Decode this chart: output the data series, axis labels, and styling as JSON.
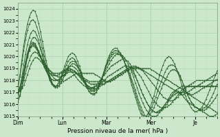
{
  "xlabel": "Pression niveau de la mer( hPa )",
  "bg_color": "#cce8cc",
  "grid_color_major": "#aad4aa",
  "grid_color_minor": "#c0e0c0",
  "line_color": "#2d5e2d",
  "ylim": [
    1015,
    1024.5
  ],
  "yticks": [
    1015,
    1016,
    1017,
    1018,
    1019,
    1020,
    1021,
    1022,
    1023,
    1024
  ],
  "xlim": [
    0,
    108
  ],
  "xtick_positions": [
    0,
    24,
    48,
    72,
    96
  ],
  "day_labels": [
    "Dim",
    "Lun",
    "Mar",
    "Mer",
    "Je"
  ],
  "series": [
    [
      1017.0,
      1017.1,
      1017.3,
      1017.6,
      1018.0,
      1018.5,
      1019.0,
      1019.4,
      1019.7,
      1019.9,
      1019.9,
      1019.8,
      1019.6,
      1019.4,
      1019.2,
      1019.0,
      1018.8,
      1018.6,
      1018.4,
      1018.2,
      1018.1,
      1018.0,
      1017.9,
      1017.9,
      1017.9,
      1018.0,
      1018.1,
      1018.2,
      1018.3,
      1018.4,
      1018.5,
      1018.6,
      1018.6,
      1018.6,
      1018.6,
      1018.6,
      1018.6,
      1018.6,
      1018.6,
      1018.6,
      1018.6,
      1018.5,
      1018.4,
      1018.3,
      1018.2,
      1018.1,
      1018.0,
      1017.9,
      1017.9,
      1017.9,
      1018.0,
      1018.1,
      1018.2,
      1018.3,
      1018.4,
      1018.5,
      1018.6,
      1018.7,
      1018.8,
      1018.9,
      1019.0,
      1019.0,
      1019.0,
      1019.0,
      1019.0,
      1019.0,
      1019.0,
      1019.0,
      1019.0,
      1019.0,
      1019.0,
      1018.9,
      1018.8,
      1018.7,
      1018.6,
      1018.5,
      1018.4,
      1018.3,
      1018.2,
      1018.1,
      1018.0,
      1017.9,
      1017.8,
      1017.7,
      1017.6,
      1017.5,
      1017.4,
      1017.3,
      1017.2,
      1017.1,
      1017.0,
      1016.9,
      1016.8,
      1016.8,
      1016.9,
      1017.0,
      1017.1,
      1017.2,
      1017.3,
      1017.4,
      1017.5,
      1017.6,
      1017.7,
      1017.8,
      1017.9,
      1018.0,
      1018.1
    ],
    [
      1017.0,
      1017.2,
      1017.5,
      1018.0,
      1018.6,
      1019.2,
      1019.7,
      1020.1,
      1020.3,
      1020.4,
      1020.3,
      1020.1,
      1019.9,
      1019.7,
      1019.4,
      1019.2,
      1019.0,
      1018.8,
      1018.6,
      1018.5,
      1018.4,
      1018.3,
      1018.3,
      1018.3,
      1018.4,
      1018.5,
      1018.6,
      1018.7,
      1018.7,
      1018.7,
      1018.7,
      1018.6,
      1018.5,
      1018.4,
      1018.3,
      1018.2,
      1018.1,
      1018.0,
      1017.9,
      1017.9,
      1017.9,
      1017.9,
      1017.9,
      1017.9,
      1017.9,
      1017.9,
      1017.9,
      1017.9,
      1017.9,
      1017.9,
      1018.0,
      1018.1,
      1018.2,
      1018.3,
      1018.4,
      1018.5,
      1018.6,
      1018.7,
      1018.8,
      1018.9,
      1019.0,
      1019.1,
      1019.1,
      1019.1,
      1019.1,
      1019.0,
      1018.9,
      1018.8,
      1018.7,
      1018.6,
      1018.5,
      1018.4,
      1018.3,
      1018.2,
      1018.1,
      1018.0,
      1017.9,
      1017.8,
      1017.7,
      1017.6,
      1017.5,
      1017.4,
      1017.3,
      1017.2,
      1017.1,
      1017.0,
      1016.9,
      1016.8,
      1016.8,
      1016.9,
      1017.0,
      1017.1,
      1017.2,
      1017.3,
      1017.4,
      1017.5,
      1017.6,
      1017.7,
      1017.8,
      1017.9,
      1018.0,
      1018.1,
      1018.2,
      1018.3,
      1018.4,
      1018.5,
      1018.6
    ],
    [
      1017.2,
      1017.5,
      1018.0,
      1018.7,
      1019.4,
      1020.0,
      1020.5,
      1020.8,
      1020.9,
      1020.8,
      1020.6,
      1020.3,
      1020.0,
      1019.7,
      1019.4,
      1019.2,
      1019.0,
      1018.8,
      1018.7,
      1018.6,
      1018.6,
      1018.6,
      1018.6,
      1018.7,
      1018.8,
      1018.9,
      1019.0,
      1019.0,
      1019.0,
      1018.9,
      1018.8,
      1018.6,
      1018.5,
      1018.3,
      1018.2,
      1018.1,
      1018.0,
      1017.9,
      1017.8,
      1017.7,
      1017.7,
      1017.7,
      1017.7,
      1017.7,
      1017.7,
      1017.7,
      1017.7,
      1017.8,
      1017.9,
      1018.0,
      1018.1,
      1018.2,
      1018.3,
      1018.4,
      1018.5,
      1018.6,
      1018.7,
      1018.8,
      1018.9,
      1019.0,
      1019.1,
      1019.2,
      1019.2,
      1019.2,
      1019.1,
      1019.0,
      1018.9,
      1018.8,
      1018.6,
      1018.4,
      1018.2,
      1018.0,
      1017.8,
      1017.6,
      1017.4,
      1017.2,
      1017.0,
      1016.8,
      1016.6,
      1016.5,
      1016.4,
      1016.3,
      1016.3,
      1016.3,
      1016.4,
      1016.5,
      1016.6,
      1016.8,
      1017.0,
      1017.2,
      1017.4,
      1017.5,
      1017.6,
      1017.7,
      1017.8,
      1017.9,
      1018.0,
      1018.0,
      1018.0,
      1018.0,
      1018.0,
      1018.0,
      1018.0,
      1018.0,
      1018.0,
      1018.0,
      1018.0,
      1018.0
    ],
    [
      1017.0,
      1017.4,
      1018.0,
      1018.8,
      1019.6,
      1020.3,
      1020.8,
      1021.1,
      1021.2,
      1021.1,
      1020.8,
      1020.5,
      1020.1,
      1019.7,
      1019.4,
      1019.1,
      1018.8,
      1018.6,
      1018.5,
      1018.4,
      1018.4,
      1018.4,
      1018.5,
      1018.6,
      1018.7,
      1018.8,
      1018.9,
      1018.9,
      1018.8,
      1018.7,
      1018.5,
      1018.3,
      1018.1,
      1017.9,
      1017.8,
      1017.6,
      1017.5,
      1017.4,
      1017.3,
      1017.3,
      1017.3,
      1017.3,
      1017.3,
      1017.4,
      1017.5,
      1017.6,
      1017.7,
      1017.8,
      1017.9,
      1018.0,
      1018.1,
      1018.2,
      1018.3,
      1018.4,
      1018.5,
      1018.6,
      1018.7,
      1018.8,
      1018.9,
      1019.0,
      1019.1,
      1019.1,
      1019.0,
      1018.9,
      1018.7,
      1018.5,
      1018.3,
      1018.0,
      1017.7,
      1017.4,
      1017.1,
      1016.8,
      1016.5,
      1016.3,
      1016.1,
      1015.9,
      1015.8,
      1015.7,
      1015.7,
      1015.7,
      1015.8,
      1015.9,
      1016.0,
      1016.2,
      1016.4,
      1016.6,
      1016.8,
      1017.0,
      1017.2,
      1017.3,
      1017.4,
      1017.5,
      1017.5,
      1017.5,
      1017.5,
      1017.5,
      1017.5,
      1017.5,
      1017.5,
      1017.5,
      1017.5,
      1017.5,
      1017.5,
      1017.5,
      1017.5,
      1017.5,
      1017.5,
      1017.5
    ],
    [
      1016.8,
      1017.2,
      1017.8,
      1018.6,
      1019.4,
      1020.1,
      1020.6,
      1020.9,
      1021.0,
      1020.9,
      1020.7,
      1020.3,
      1019.9,
      1019.5,
      1019.1,
      1018.8,
      1018.5,
      1018.3,
      1018.1,
      1018.0,
      1018.0,
      1018.0,
      1018.1,
      1018.2,
      1018.4,
      1018.5,
      1018.7,
      1018.8,
      1018.9,
      1018.9,
      1018.8,
      1018.7,
      1018.5,
      1018.3,
      1018.1,
      1017.9,
      1017.7,
      1017.6,
      1017.5,
      1017.4,
      1017.4,
      1017.4,
      1017.5,
      1017.6,
      1017.7,
      1017.8,
      1018.0,
      1018.1,
      1018.3,
      1018.4,
      1018.5,
      1018.6,
      1018.7,
      1018.8,
      1018.9,
      1019.0,
      1019.1,
      1019.2,
      1019.2,
      1019.2,
      1019.1,
      1018.9,
      1018.6,
      1018.3,
      1018.0,
      1017.6,
      1017.2,
      1016.8,
      1016.5,
      1016.2,
      1015.9,
      1015.7,
      1015.5,
      1015.4,
      1015.3,
      1015.4,
      1015.5,
      1015.6,
      1015.8,
      1016.0,
      1016.2,
      1016.4,
      1016.6,
      1016.8,
      1017.0,
      1017.2,
      1017.3,
      1017.4,
      1017.5,
      1017.5,
      1017.5,
      1017.5,
      1017.5,
      1017.5,
      1017.5,
      1017.5,
      1017.5,
      1017.5,
      1017.5,
      1017.5,
      1017.5,
      1017.5,
      1017.5,
      1017.5,
      1017.5,
      1017.5,
      1017.5,
      1017.5
    ],
    [
      1016.5,
      1016.8,
      1017.4,
      1018.2,
      1019.1,
      1019.9,
      1020.5,
      1020.9,
      1021.1,
      1021.0,
      1020.8,
      1020.4,
      1020.0,
      1019.6,
      1019.2,
      1018.8,
      1018.5,
      1018.3,
      1018.1,
      1018.0,
      1018.0,
      1018.0,
      1018.1,
      1018.3,
      1018.5,
      1018.7,
      1018.9,
      1019.1,
      1019.2,
      1019.2,
      1019.1,
      1019.0,
      1018.8,
      1018.5,
      1018.3,
      1018.0,
      1017.8,
      1017.6,
      1017.5,
      1017.4,
      1017.4,
      1017.5,
      1017.6,
      1017.8,
      1018.0,
      1018.2,
      1018.4,
      1018.6,
      1018.8,
      1019.0,
      1019.2,
      1019.3,
      1019.4,
      1019.5,
      1019.6,
      1019.7,
      1019.8,
      1019.8,
      1019.7,
      1019.6,
      1019.4,
      1019.1,
      1018.8,
      1018.4,
      1018.0,
      1017.6,
      1017.2,
      1016.8,
      1016.5,
      1016.2,
      1015.9,
      1015.7,
      1015.5,
      1015.4,
      1015.3,
      1015.3,
      1015.4,
      1015.5,
      1015.6,
      1015.8,
      1016.0,
      1016.3,
      1016.5,
      1016.7,
      1016.8,
      1016.9,
      1017.0,
      1017.0,
      1017.0,
      1017.0,
      1017.0,
      1016.9,
      1016.8,
      1016.7,
      1016.6,
      1016.5,
      1016.4,
      1016.3,
      1016.2,
      1016.1,
      1016.0,
      1015.9,
      1015.8,
      1015.7,
      1015.6,
      1015.5,
      1015.4,
      1015.3
    ],
    [
      1016.2,
      1016.7,
      1017.4,
      1018.3,
      1019.2,
      1020.1,
      1020.8,
      1021.3,
      1021.6,
      1021.6,
      1021.4,
      1021.1,
      1020.6,
      1020.1,
      1019.5,
      1019.0,
      1018.5,
      1018.1,
      1017.8,
      1017.6,
      1017.5,
      1017.5,
      1017.6,
      1017.8,
      1018.1,
      1018.4,
      1018.7,
      1019.0,
      1019.2,
      1019.4,
      1019.4,
      1019.3,
      1019.1,
      1018.8,
      1018.5,
      1018.2,
      1017.9,
      1017.6,
      1017.4,
      1017.2,
      1017.2,
      1017.2,
      1017.3,
      1017.5,
      1017.8,
      1018.1,
      1018.5,
      1018.8,
      1019.1,
      1019.4,
      1019.7,
      1019.9,
      1020.1,
      1020.2,
      1020.2,
      1020.2,
      1020.1,
      1019.9,
      1019.7,
      1019.4,
      1019.1,
      1018.7,
      1018.3,
      1017.8,
      1017.4,
      1016.9,
      1016.5,
      1016.1,
      1015.8,
      1015.5,
      1015.3,
      1015.1,
      1015.0,
      1015.0,
      1015.0,
      1015.1,
      1015.3,
      1015.5,
      1015.7,
      1016.0,
      1016.2,
      1016.5,
      1016.8,
      1017.0,
      1017.1,
      1017.2,
      1017.1,
      1017.0,
      1016.8,
      1016.6,
      1016.4,
      1016.2,
      1016.1,
      1016.0,
      1015.9,
      1015.8,
      1015.7,
      1015.6,
      1015.5,
      1015.4,
      1015.3,
      1015.2,
      1015.1,
      1015.0,
      1015.0,
      1015.0,
      1015.1,
      1015.2
    ],
    [
      1016.8,
      1017.4,
      1018.3,
      1019.3,
      1020.2,
      1021.0,
      1021.6,
      1022.0,
      1022.2,
      1022.1,
      1021.8,
      1021.4,
      1020.8,
      1020.2,
      1019.6,
      1019.0,
      1018.5,
      1018.0,
      1017.7,
      1017.5,
      1017.4,
      1017.4,
      1017.5,
      1017.8,
      1018.1,
      1018.5,
      1018.9,
      1019.2,
      1019.5,
      1019.6,
      1019.6,
      1019.5,
      1019.2,
      1018.9,
      1018.5,
      1018.2,
      1017.8,
      1017.5,
      1017.3,
      1017.1,
      1017.1,
      1017.1,
      1017.2,
      1017.5,
      1017.8,
      1018.2,
      1018.6,
      1019.0,
      1019.4,
      1019.7,
      1020.0,
      1020.2,
      1020.3,
      1020.3,
      1020.2,
      1020.1,
      1019.9,
      1019.6,
      1019.3,
      1019.0,
      1018.6,
      1018.1,
      1017.7,
      1017.2,
      1016.7,
      1016.2,
      1015.8,
      1015.4,
      1015.1,
      1014.9,
      1015.0,
      1015.2,
      1015.4,
      1015.7,
      1016.1,
      1016.5,
      1016.9,
      1017.3,
      1017.7,
      1018.0,
      1018.3,
      1018.6,
      1018.8,
      1018.9,
      1018.9,
      1018.8,
      1018.6,
      1018.3,
      1018.0,
      1017.6,
      1017.2,
      1016.8,
      1016.5,
      1016.2,
      1016.0,
      1015.8,
      1015.7,
      1015.6,
      1015.5,
      1015.5,
      1015.5,
      1015.6,
      1015.7,
      1015.9,
      1016.1,
      1016.3,
      1016.5,
      1016.8
    ],
    [
      1017.5,
      1018.3,
      1019.4,
      1020.5,
      1021.4,
      1022.2,
      1022.7,
      1023.0,
      1023.1,
      1022.9,
      1022.5,
      1022.0,
      1021.4,
      1020.7,
      1020.0,
      1019.3,
      1018.7,
      1018.2,
      1017.8,
      1017.6,
      1017.5,
      1017.6,
      1017.8,
      1018.1,
      1018.5,
      1018.9,
      1019.3,
      1019.6,
      1019.8,
      1019.9,
      1019.8,
      1019.6,
      1019.3,
      1018.9,
      1018.5,
      1018.1,
      1017.7,
      1017.4,
      1017.1,
      1016.9,
      1016.9,
      1016.9,
      1017.0,
      1017.3,
      1017.7,
      1018.1,
      1018.6,
      1019.1,
      1019.5,
      1019.9,
      1020.2,
      1020.4,
      1020.5,
      1020.5,
      1020.4,
      1020.2,
      1019.9,
      1019.6,
      1019.2,
      1018.8,
      1018.4,
      1017.9,
      1017.4,
      1016.9,
      1016.4,
      1015.9,
      1015.5,
      1015.1,
      1014.9,
      1015.0,
      1015.2,
      1015.5,
      1015.8,
      1016.2,
      1016.6,
      1017.1,
      1017.5,
      1017.9,
      1018.3,
      1018.7,
      1019.0,
      1019.2,
      1019.3,
      1019.3,
      1019.2,
      1019.0,
      1018.7,
      1018.4,
      1018.0,
      1017.6,
      1017.2,
      1016.8,
      1016.5,
      1016.2,
      1016.0,
      1015.8,
      1015.7,
      1015.6,
      1015.6,
      1015.6,
      1015.7,
      1015.8,
      1016.0,
      1016.3,
      1016.6,
      1016.9,
      1017.3,
      1017.7
    ],
    [
      1017.5,
      1018.5,
      1019.7,
      1020.9,
      1021.9,
      1022.7,
      1023.3,
      1023.7,
      1023.9,
      1023.8,
      1023.4,
      1022.8,
      1022.1,
      1021.3,
      1020.5,
      1019.7,
      1019.0,
      1018.4,
      1017.9,
      1017.6,
      1017.5,
      1017.6,
      1017.9,
      1018.3,
      1018.7,
      1019.2,
      1019.6,
      1020.0,
      1020.2,
      1020.3,
      1020.2,
      1020.0,
      1019.6,
      1019.2,
      1018.7,
      1018.2,
      1017.8,
      1017.4,
      1017.1,
      1016.9,
      1016.8,
      1016.8,
      1017.0,
      1017.3,
      1017.7,
      1018.2,
      1018.7,
      1019.2,
      1019.7,
      1020.1,
      1020.4,
      1020.6,
      1020.7,
      1020.7,
      1020.5,
      1020.3,
      1020.0,
      1019.6,
      1019.1,
      1018.7,
      1018.2,
      1017.6,
      1017.1,
      1016.6,
      1016.1,
      1015.6,
      1015.2,
      1014.9,
      1014.8,
      1015.0,
      1015.3,
      1015.7,
      1016.2,
      1016.7,
      1017.3,
      1017.8,
      1018.4,
      1018.9,
      1019.3,
      1019.7,
      1019.9,
      1020.0,
      1019.9,
      1019.7,
      1019.4,
      1019.0,
      1018.6,
      1018.1,
      1017.6,
      1017.1,
      1016.7,
      1016.3,
      1016.0,
      1015.7,
      1015.5,
      1015.4,
      1015.4,
      1015.5,
      1015.6,
      1015.8,
      1016.1,
      1016.4,
      1016.8,
      1017.2,
      1017.6,
      1018.0,
      1018.4,
      1018.8
    ]
  ]
}
